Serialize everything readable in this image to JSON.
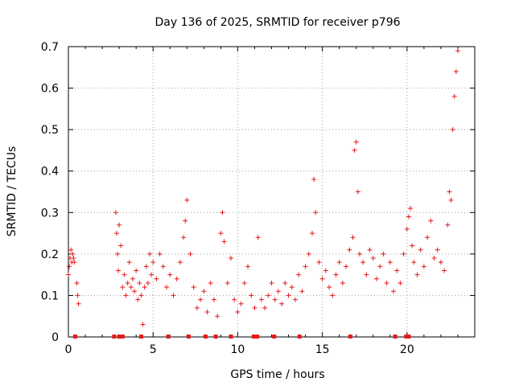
{
  "chart_data": {
    "type": "scatter",
    "title": "Day 136 of 2025, SRMTID for receiver p796",
    "xlabel": "GPS time / hours",
    "ylabel": "SRMTID / TECUs",
    "xlim": [
      0,
      24
    ],
    "ylim": [
      0,
      0.7
    ],
    "xticks": [
      0,
      5,
      10,
      15,
      20
    ],
    "xtick_labels": [
      "0",
      "5",
      "10",
      "15",
      "20"
    ],
    "yticks": [
      0,
      0.1,
      0.2,
      0.3,
      0.4,
      0.5,
      0.6,
      0.7
    ],
    "ytick_labels": [
      "0",
      "0.1",
      "0.2",
      "0.3",
      "0.4",
      "0.5",
      "0.6",
      "0.7"
    ],
    "grid": true,
    "marker": "+",
    "color": "#e41a1c",
    "series": [
      {
        "name": "SRMTID",
        "x": [
          0.0,
          0.05,
          0.1,
          0.15,
          0.2,
          0.25,
          0.3,
          0.35,
          0.5,
          0.55,
          0.6,
          2.8,
          2.85,
          2.9,
          2.95,
          3.0,
          3.1,
          3.2,
          3.3,
          3.4,
          3.5,
          3.6,
          3.7,
          3.8,
          3.9,
          4.0,
          4.1,
          4.2,
          4.3,
          4.4,
          4.5,
          4.6,
          4.7,
          4.8,
          4.9,
          5.0,
          5.2,
          5.4,
          5.6,
          5.8,
          6.0,
          6.2,
          6.4,
          6.6,
          6.8,
          6.9,
          7.0,
          7.2,
          7.4,
          7.6,
          7.8,
          8.0,
          8.2,
          8.4,
          8.6,
          8.8,
          9.0,
          9.1,
          9.2,
          9.4,
          9.6,
          9.8,
          10.0,
          10.2,
          10.4,
          10.6,
          10.8,
          11.0,
          11.2,
          11.4,
          11.6,
          11.8,
          12.0,
          12.2,
          12.4,
          12.6,
          12.8,
          13.0,
          13.2,
          13.4,
          13.6,
          13.8,
          14.0,
          14.2,
          14.4,
          14.5,
          14.6,
          14.8,
          15.0,
          15.2,
          15.4,
          15.6,
          15.8,
          16.0,
          16.2,
          16.4,
          16.6,
          16.8,
          16.9,
          17.0,
          17.1,
          17.2,
          17.4,
          17.6,
          17.8,
          18.0,
          18.2,
          18.4,
          18.6,
          18.8,
          19.0,
          19.2,
          19.4,
          19.6,
          19.8,
          20.0,
          20.1,
          20.2,
          20.3,
          20.4,
          20.6,
          20.8,
          21.0,
          21.2,
          21.4,
          21.6,
          21.8,
          22.0,
          22.2,
          22.4,
          22.5,
          22.6,
          22.7,
          22.8,
          22.9,
          23.0
        ],
        "y": [
          0.15,
          0.17,
          0.19,
          0.21,
          0.18,
          0.2,
          0.19,
          0.18,
          0.13,
          0.1,
          0.08,
          0.3,
          0.25,
          0.2,
          0.16,
          0.27,
          0.22,
          0.12,
          0.15,
          0.1,
          0.13,
          0.18,
          0.12,
          0.14,
          0.11,
          0.16,
          0.09,
          0.13,
          0.1,
          0.03,
          0.12,
          0.17,
          0.13,
          0.2,
          0.15,
          0.18,
          0.14,
          0.2,
          0.17,
          0.12,
          0.15,
          0.1,
          0.14,
          0.18,
          0.24,
          0.28,
          0.33,
          0.2,
          0.12,
          0.07,
          0.09,
          0.11,
          0.06,
          0.13,
          0.09,
          0.05,
          0.25,
          0.3,
          0.23,
          0.13,
          0.19,
          0.09,
          0.06,
          0.08,
          0.13,
          0.17,
          0.1,
          0.07,
          0.24,
          0.09,
          0.07,
          0.1,
          0.13,
          0.09,
          0.11,
          0.08,
          0.13,
          0.1,
          0.12,
          0.09,
          0.15,
          0.11,
          0.17,
          0.2,
          0.25,
          0.38,
          0.3,
          0.18,
          0.14,
          0.16,
          0.12,
          0.1,
          0.15,
          0.18,
          0.13,
          0.17,
          0.21,
          0.24,
          0.45,
          0.47,
          0.35,
          0.2,
          0.18,
          0.15,
          0.21,
          0.19,
          0.14,
          0.17,
          0.2,
          0.13,
          0.18,
          0.11,
          0.16,
          0.13,
          0.2,
          0.26,
          0.29,
          0.31,
          0.22,
          0.18,
          0.15,
          0.21,
          0.17,
          0.24,
          0.28,
          0.19,
          0.21,
          0.18,
          0.16,
          0.27,
          0.35,
          0.33,
          0.5,
          0.58,
          0.64,
          0.69
        ]
      }
    ],
    "gap_markers_x": [
      0.4,
      2.7,
      3.0,
      3.2,
      4.3,
      5.9,
      7.1,
      8.1,
      8.7,
      9.6,
      10.95,
      11.15,
      12.15,
      13.65,
      16.65,
      19.3,
      19.95,
      20.1
    ]
  }
}
